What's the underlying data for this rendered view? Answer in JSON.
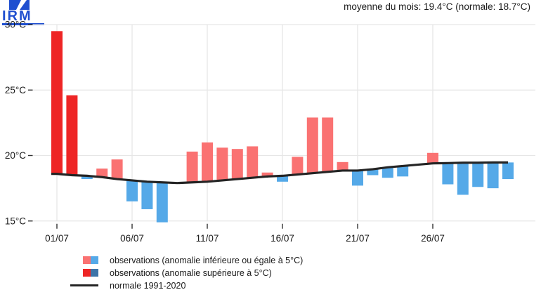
{
  "logo": {
    "text": "IRM",
    "color": "#1f4fd0"
  },
  "header": {
    "summary": "moyenne du mois: 19.4°C (normale: 18.7°C)"
  },
  "chart_data": {
    "type": "bar",
    "title": "",
    "unit": "°C",
    "anomaly_threshold_c": 5,
    "x": [
      1,
      2,
      3,
      4,
      5,
      6,
      7,
      8,
      9,
      10,
      11,
      12,
      13,
      14,
      15,
      16,
      17,
      18,
      19,
      20,
      21,
      22,
      23,
      24,
      25,
      26,
      27,
      28,
      29,
      30,
      31
    ],
    "x_ticks": [
      {
        "label": "01/07",
        "day": 1
      },
      {
        "label": "06/07",
        "day": 6
      },
      {
        "label": "11/07",
        "day": 11
      },
      {
        "label": "16/07",
        "day": 16
      },
      {
        "label": "21/07",
        "day": 21
      },
      {
        "label": "26/07",
        "day": 26
      }
    ],
    "y_ticks": [
      {
        "label": "30°C",
        "value": 30
      },
      {
        "label": "25°C",
        "value": 25
      },
      {
        "label": "20°C",
        "value": 20
      },
      {
        "label": "15°C",
        "value": 15
      }
    ],
    "ylim": [
      14.5,
      30.5
    ],
    "series": [
      {
        "name": "observations",
        "values": [
          29.5,
          24.6,
          18.2,
          19.0,
          19.7,
          16.5,
          15.9,
          14.9,
          17.9,
          20.3,
          21.0,
          20.6,
          20.5,
          20.7,
          18.7,
          18.0,
          19.9,
          22.9,
          22.9,
          19.5,
          17.7,
          18.5,
          18.3,
          18.4,
          19.3,
          20.2,
          17.8,
          17.0,
          17.6,
          17.5,
          18.2
        ]
      },
      {
        "name": "normale 1991-2020",
        "values": [
          18.6,
          18.5,
          18.45,
          18.35,
          18.2,
          18.1,
          18.0,
          17.95,
          17.9,
          17.95,
          18.0,
          18.1,
          18.2,
          18.3,
          18.4,
          18.45,
          18.55,
          18.65,
          18.75,
          18.85,
          18.85,
          18.95,
          19.1,
          19.2,
          19.3,
          19.4,
          19.42,
          19.45,
          19.45,
          19.47,
          19.47
        ]
      }
    ],
    "colors": {
      "anomaly_pos_small": "#fa7272",
      "anomaly_pos_large": "#ee2525",
      "anomaly_neg_small": "#55a9e8",
      "anomaly_neg_large": "#3d74a8",
      "normal_line": "#242424",
      "gridline": "#e6e6e6",
      "tick": "#333333"
    },
    "legend": [
      {
        "type": "swatch-pair",
        "colors": [
          "#fa7272",
          "#55a9e8"
        ],
        "label": "observations (anomalie inférieure ou égale à 5°C)"
      },
      {
        "type": "swatch-pair",
        "colors": [
          "#ee2525",
          "#3d74a8"
        ],
        "label": "observations (anomalie supérieure à 5°C)"
      },
      {
        "type": "line",
        "colors": [
          "#242424"
        ],
        "label": "normale 1991-2020"
      }
    ]
  }
}
